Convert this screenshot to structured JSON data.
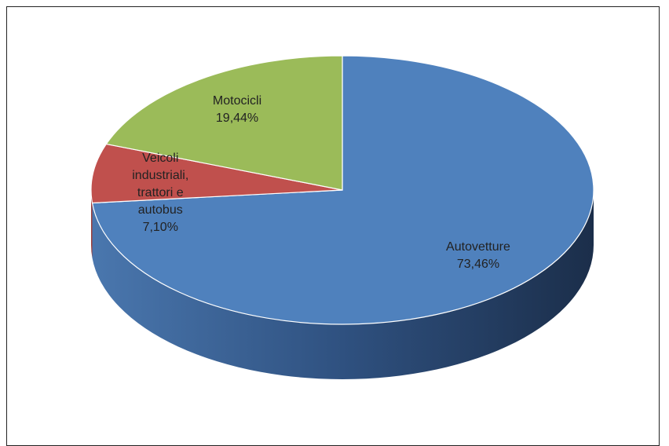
{
  "chart_data": {
    "type": "pie",
    "categories": [
      "Autovetture",
      "Veicoli industriali, trattori e autobus",
      "Motocicli"
    ],
    "values": [
      73.46,
      7.1,
      19.44
    ],
    "value_labels": [
      "73,46%",
      "7,10%",
      "19,44%"
    ],
    "colors": [
      "#4f81bd",
      "#c0504d",
      "#9bbb59"
    ]
  }
}
